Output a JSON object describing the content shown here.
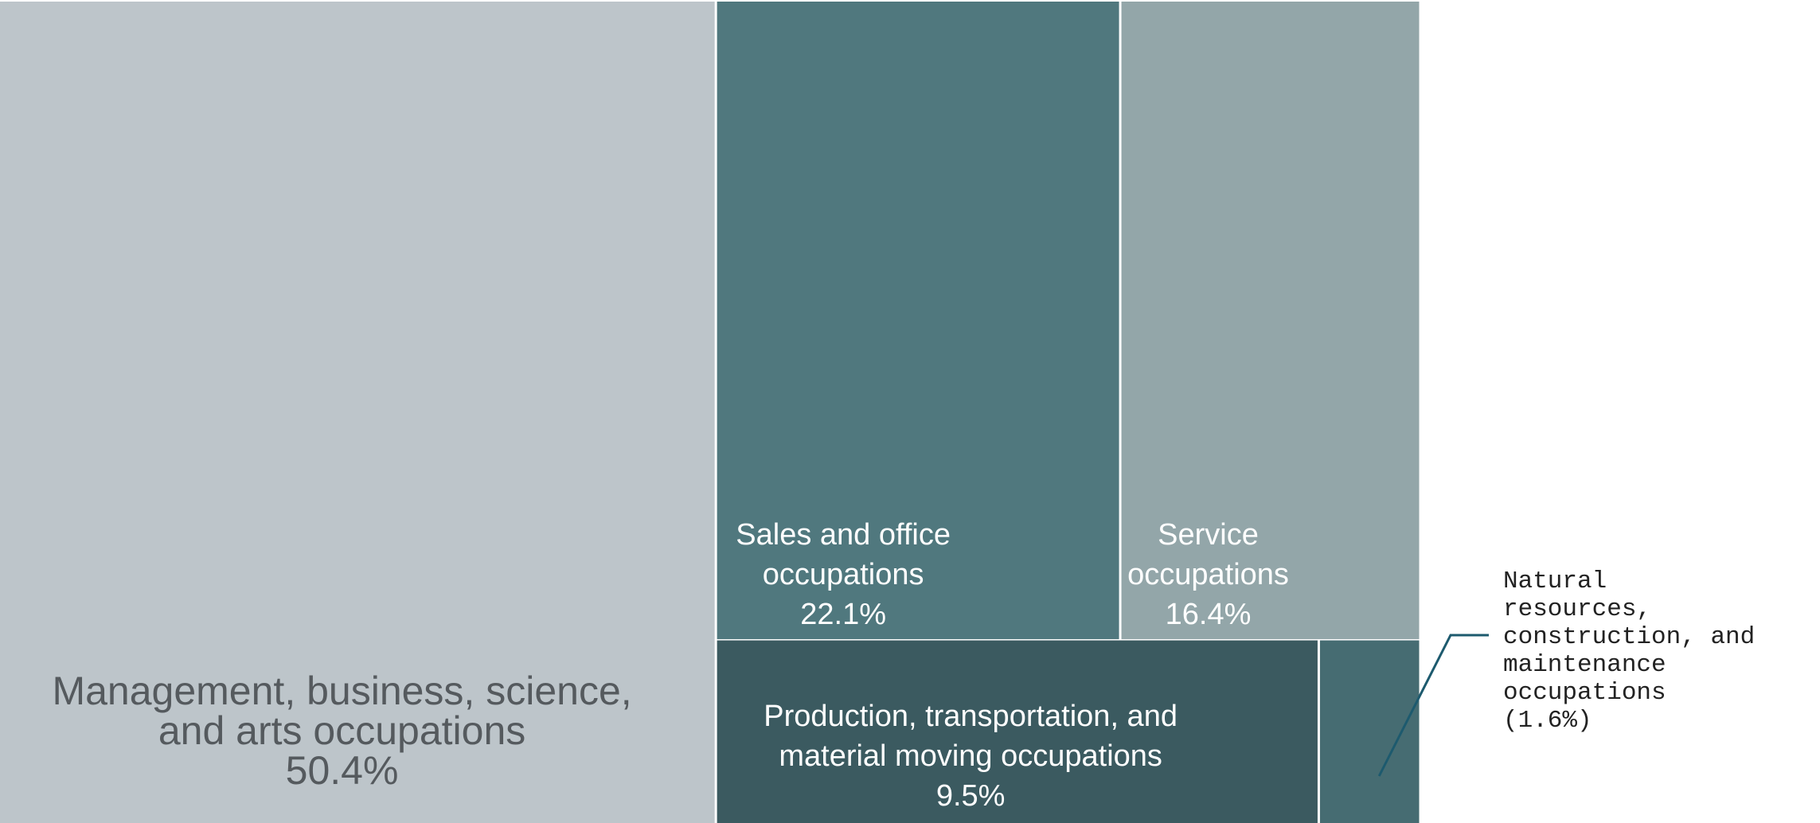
{
  "chart_data": {
    "type": "treemap",
    "unit": "%",
    "items": [
      {
        "label_lines": [
          "Management, business, science,",
          "and arts occupations"
        ],
        "value": 50.4,
        "value_label": "50.4%",
        "color": "#bdc5ca",
        "text_color": "#555a5e"
      },
      {
        "label_lines": [
          "Sales and office",
          "occupations"
        ],
        "value": 22.1,
        "value_label": "22.1%",
        "color": "#50787e",
        "text_color": "#ffffff"
      },
      {
        "label_lines": [
          "Service",
          "occupations"
        ],
        "value": 16.4,
        "value_label": "16.4%",
        "color": "#93a6a9",
        "text_color": "#ffffff"
      },
      {
        "label_lines": [
          "Production, transportation, and",
          "material moving occupations"
        ],
        "value": 9.5,
        "value_label": "9.5%",
        "color": "#3b5a60",
        "text_color": "#ffffff"
      },
      {
        "label_lines": [],
        "value": 1.6,
        "value_label": "",
        "color": "#466c72",
        "text_color": "#ffffff"
      }
    ],
    "callout": {
      "lines": [
        "Natural",
        "resources,",
        "construction, and",
        "maintenance",
        "occupations",
        "(1.6%)"
      ],
      "line_color": "#1d5a6e"
    }
  }
}
